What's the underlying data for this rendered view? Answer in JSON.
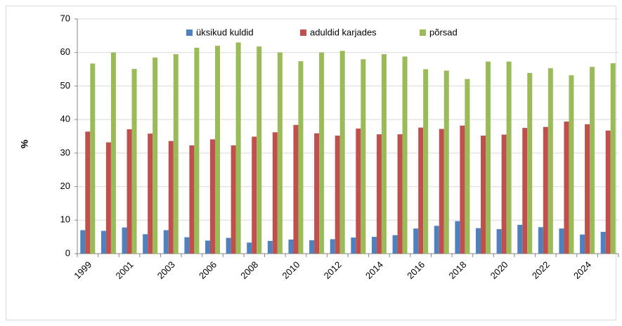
{
  "chart_data": {
    "type": "bar",
    "ylabel": "%",
    "categories": [
      "1999",
      null,
      "2001",
      null,
      "2003",
      null,
      "2006",
      null,
      "2008",
      null,
      "2010",
      null,
      "2012",
      null,
      "2014",
      null,
      "2016",
      null,
      "2018",
      null,
      "2020",
      null,
      "2022",
      null,
      "2024",
      null
    ],
    "series": [
      {
        "name": "üksikud kuldid",
        "color": "#4f81bd",
        "values": [
          7.0,
          6.8,
          7.8,
          5.8,
          7.0,
          4.9,
          3.9,
          4.7,
          3.3,
          3.8,
          4.2,
          4.0,
          4.3,
          4.8,
          5.0,
          5.5,
          7.5,
          8.3,
          9.7,
          7.6,
          7.3,
          8.6,
          7.9,
          7.5,
          5.7,
          6.5
        ]
      },
      {
        "name": "aduldid karjades",
        "color": "#c0504d",
        "values": [
          36.4,
          33.2,
          37.1,
          35.8,
          33.6,
          32.3,
          34.1,
          32.3,
          34.9,
          36.2,
          38.4,
          35.9,
          35.2,
          37.3,
          35.6,
          35.6,
          37.6,
          37.2,
          38.2,
          35.2,
          35.5,
          37.5,
          37.8,
          39.4,
          38.6,
          36.7
        ]
      },
      {
        "name": "põrsad",
        "color": "#9bbb59",
        "values": [
          56.7,
          60.0,
          55.1,
          58.5,
          59.5,
          61.4,
          62.0,
          63.0,
          61.8,
          60.0,
          57.4,
          60.0,
          60.5,
          58.0,
          59.5,
          58.8,
          55.0,
          54.6,
          52.1,
          57.3,
          57.3,
          53.9,
          55.3,
          53.2,
          55.7,
          56.8
        ]
      }
    ],
    "ylim": [
      0,
      70
    ],
    "yticks": [
      0,
      10,
      20,
      30,
      40,
      50,
      60,
      70
    ],
    "grid": true,
    "legend": "top"
  }
}
